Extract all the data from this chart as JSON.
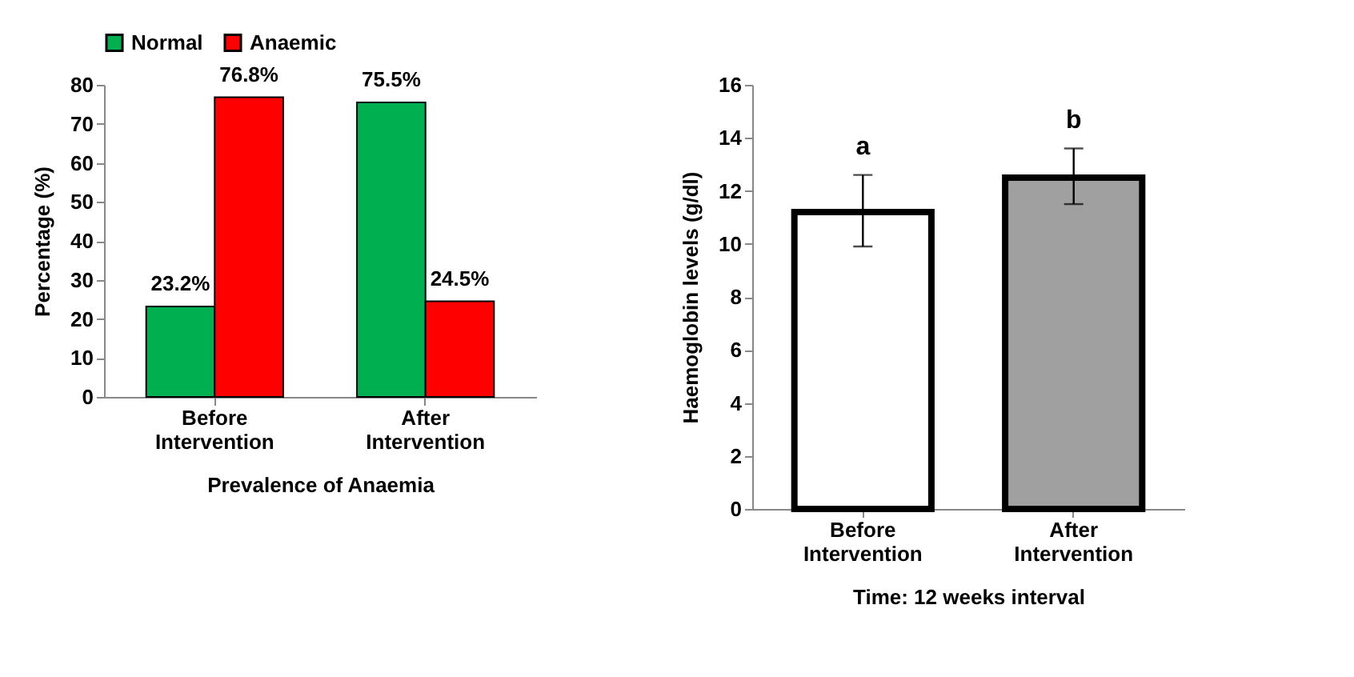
{
  "chart_data": [
    {
      "type": "bar",
      "xlabel": "Prevalence of Anaemia",
      "ylabel": "Percentage (%)",
      "categories": [
        "Before Intervention",
        "After Intervention"
      ],
      "series": [
        {
          "name": "Normal",
          "color": "#00b050",
          "values": [
            23.2,
            75.5
          ],
          "value_labels": [
            "23.2%",
            "75.5%"
          ]
        },
        {
          "name": "Anaemic",
          "color": "#ff0000",
          "values": [
            76.8,
            24.5
          ],
          "value_labels": [
            "76.8%",
            "24.5%"
          ]
        }
      ],
      "ylim": [
        0,
        80
      ],
      "yticks": [
        0,
        10,
        20,
        30,
        40,
        50,
        60,
        70,
        80
      ],
      "legend": "top"
    },
    {
      "type": "bar",
      "xlabel": "Time: 12 weeks interval",
      "ylabel": "Haemoglobin levels (g/dl)",
      "categories": [
        "Before Intervention",
        "After Intervention"
      ],
      "values": [
        11.2,
        12.5
      ],
      "colors": [
        "#ffffff",
        "#a0a0a0"
      ],
      "errors": [
        [
          9.9,
          12.6
        ],
        [
          11.5,
          13.6
        ]
      ],
      "ylim": [
        0,
        16
      ],
      "yticks": [
        0,
        2,
        4,
        6,
        8,
        10,
        12,
        14,
        16
      ],
      "annotations": [
        "a",
        "b"
      ]
    }
  ]
}
